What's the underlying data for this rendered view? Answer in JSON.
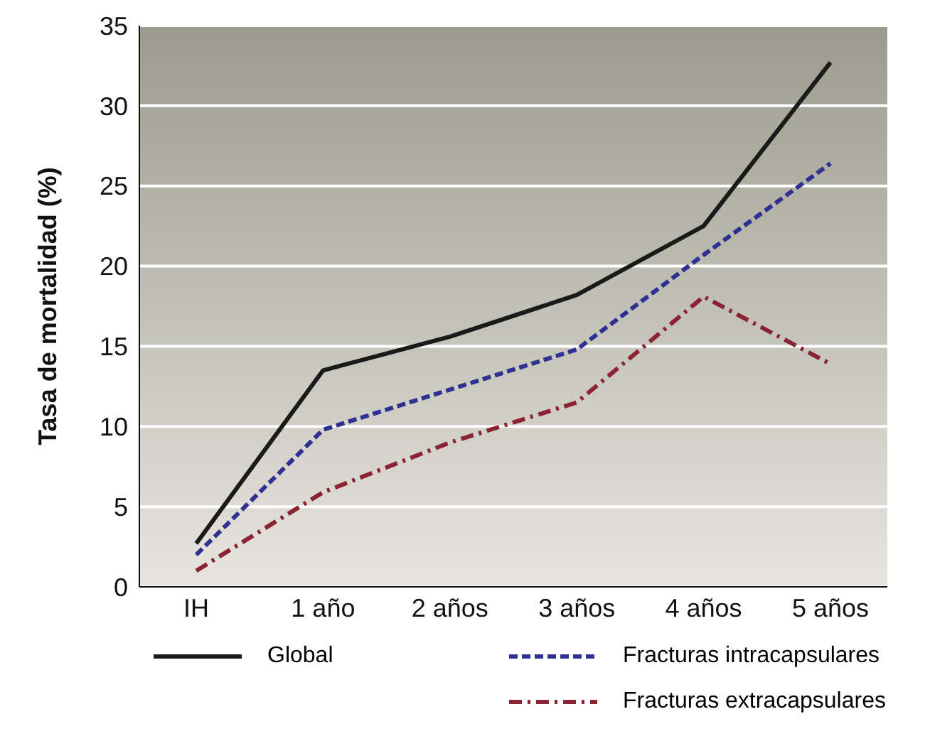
{
  "chart_data": {
    "type": "line",
    "ylabel": "Tasa de mortalidad (%)",
    "categories": [
      "IH",
      "1 año",
      "2 años",
      "3 años",
      "4 años",
      "5 años"
    ],
    "series": [
      {
        "name": "Global",
        "color": "#1a1a1a",
        "line_style": "solid",
        "values": [
          2.7,
          13.5,
          15.6,
          18.2,
          22.5,
          32.7
        ]
      },
      {
        "name": "Fracturas intracapsulares",
        "color": "#2e3192",
        "line_style": "dashed",
        "values": [
          2.0,
          9.8,
          12.3,
          14.8,
          20.7,
          26.4
        ]
      },
      {
        "name": "Fracturas extracapsulares",
        "color": "#8b2332",
        "line_style": "dashdot",
        "values": [
          1.0,
          5.9,
          9.0,
          11.5,
          18.1,
          13.9
        ]
      }
    ],
    "ylim": [
      0,
      35
    ],
    "yticks": [
      0,
      5,
      10,
      15,
      20,
      25,
      30,
      35
    ],
    "grid": "y",
    "legend": "bottom",
    "marker": "none"
  }
}
